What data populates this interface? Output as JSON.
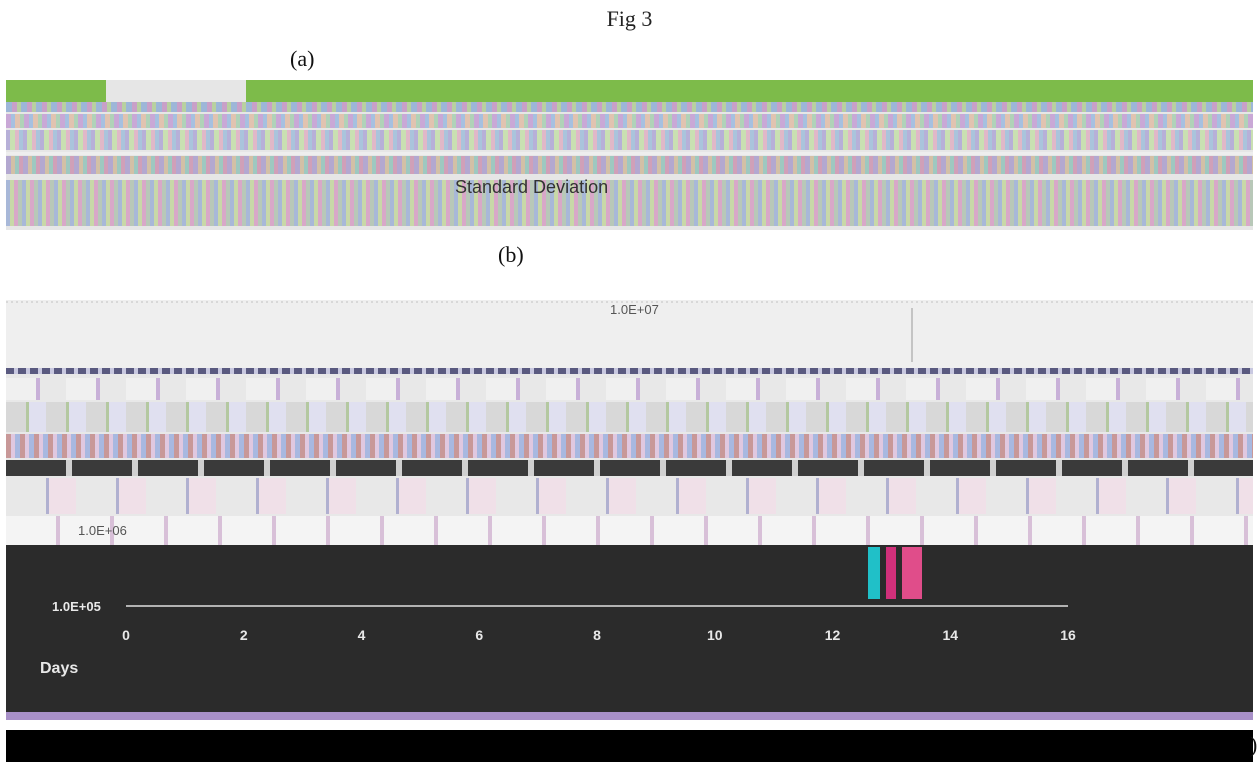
{
  "figure": {
    "title": "Fig 3",
    "panel_a_label": "(a)",
    "panel_b_label": "(b)",
    "closing_paren": ")"
  },
  "panel_a": {
    "partial_text": "Standard Deviation"
  },
  "colors": {
    "green_strip": "#7dbb4a",
    "chart_bg": "#2b2b2b",
    "bar_cyan": "#20c0c8",
    "bar_magenta": "#d0307a",
    "bar_pink": "#e04d8a",
    "axis_light": "#e8e8e8"
  },
  "chart_data": {
    "type": "line",
    "xlabel": "Days",
    "x_ticks": [
      0,
      2,
      4,
      6,
      8,
      10,
      12,
      14,
      16
    ],
    "xlim": [
      0,
      16
    ],
    "y_scale": "log",
    "y_ticks": [
      "1.0E+05",
      "1.0E+06",
      "1.0E+07"
    ],
    "ylim": [
      100000,
      10000000
    ],
    "grid": false,
    "series": []
  }
}
